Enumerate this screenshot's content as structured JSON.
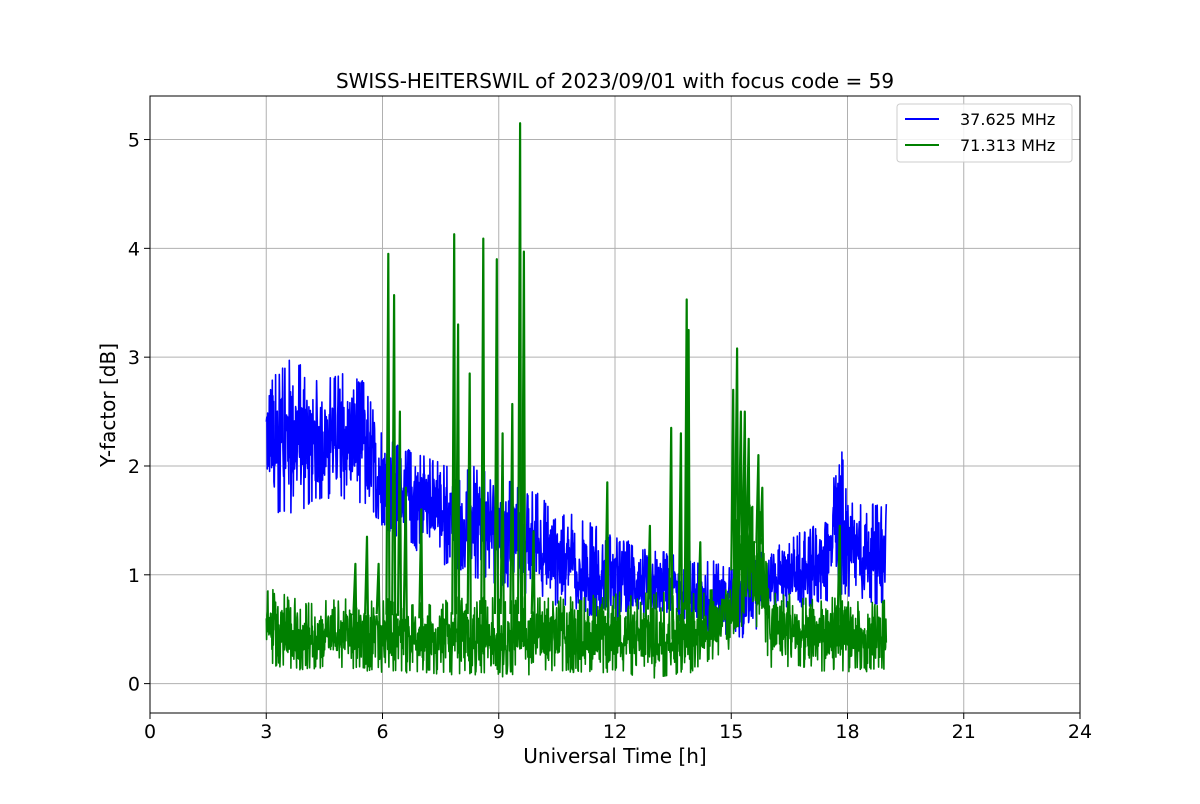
{
  "chart_data": {
    "type": "line",
    "title": "SWISS-HEITERSWIL of 2023/09/01 with focus code = 59",
    "xlabel": "Universal Time [h]",
    "ylabel": "Y-factor [dB]",
    "xlim": [
      0,
      24
    ],
    "ylim": [
      -0.27,
      5.4
    ],
    "xticks": [
      0,
      3,
      6,
      9,
      12,
      15,
      18,
      21,
      24
    ],
    "yticks": [
      0,
      1,
      2,
      3,
      4,
      5
    ],
    "grid": true,
    "legend_position": "top-right",
    "x_data_range": [
      3.0,
      19.0
    ],
    "series": [
      {
        "name": "37.625 MHz",
        "color": "#0000ff",
        "envelope": {
          "x": [
            3.0,
            3.3,
            3.7,
            4.0,
            4.5,
            5.0,
            5.5,
            6.0,
            6.5,
            7.0,
            7.5,
            8.0,
            8.5,
            9.0,
            9.5,
            10.0,
            10.5,
            11.0,
            11.5,
            12.0,
            12.5,
            13.0,
            13.5,
            14.0,
            14.5,
            15.0,
            15.5,
            16.0,
            16.5,
            17.0,
            17.5,
            17.8,
            18.0,
            18.5,
            19.0
          ],
          "min": [
            1.8,
            1.55,
            1.55,
            1.6,
            1.7,
            1.7,
            1.65,
            1.45,
            1.3,
            1.2,
            1.1,
            1.05,
            0.95,
            0.9,
            0.85,
            0.8,
            0.7,
            0.65,
            0.6,
            0.55,
            0.6,
            0.6,
            0.55,
            0.5,
            0.45,
            0.45,
            0.4,
            0.65,
            0.7,
            0.7,
            0.75,
            0.8,
            0.8,
            0.75,
            0.7
          ],
          "max": [
            2.8,
            2.85,
            3.05,
            2.85,
            2.8,
            2.85,
            2.8,
            2.3,
            2.2,
            2.1,
            2.05,
            2.0,
            2.0,
            1.95,
            1.8,
            1.75,
            1.6,
            1.55,
            1.45,
            1.35,
            1.3,
            1.25,
            1.2,
            1.15,
            1.15,
            1.1,
            1.15,
            1.25,
            1.35,
            1.45,
            1.5,
            2.35,
            1.65,
            1.7,
            1.65
          ]
        }
      },
      {
        "name": "71.313 MHz",
        "color": "#008000",
        "envelope": {
          "x": [
            3.0,
            4.0,
            5.0,
            6.0,
            7.0,
            8.0,
            9.0,
            10.0,
            11.0,
            12.0,
            13.0,
            14.0,
            15.0,
            15.1,
            15.8,
            16.0,
            17.0,
            18.0,
            19.0
          ],
          "min": [
            0.15,
            0.12,
            0.12,
            0.1,
            0.08,
            0.08,
            0.06,
            0.08,
            0.1,
            0.1,
            0.05,
            0.1,
            0.3,
            0.5,
            0.5,
            0.15,
            0.12,
            0.1,
            0.12
          ],
          "max": [
            0.9,
            0.75,
            0.78,
            0.8,
            0.75,
            0.8,
            0.8,
            0.8,
            0.8,
            0.85,
            0.85,
            0.85,
            0.9,
            1.7,
            1.6,
            0.85,
            0.8,
            0.8,
            0.8
          ]
        },
        "spikes": [
          {
            "x": 5.3,
            "y": 1.1
          },
          {
            "x": 5.6,
            "y": 1.35
          },
          {
            "x": 5.9,
            "y": 1.1
          },
          {
            "x": 6.15,
            "y": 3.95
          },
          {
            "x": 6.3,
            "y": 3.57
          },
          {
            "x": 6.45,
            "y": 2.5
          },
          {
            "x": 6.6,
            "y": 1.8
          },
          {
            "x": 7.0,
            "y": 1.6
          },
          {
            "x": 7.85,
            "y": 4.13
          },
          {
            "x": 7.95,
            "y": 3.3
          },
          {
            "x": 8.25,
            "y": 2.85
          },
          {
            "x": 8.6,
            "y": 4.09
          },
          {
            "x": 8.95,
            "y": 3.9
          },
          {
            "x": 9.1,
            "y": 2.3
          },
          {
            "x": 9.35,
            "y": 2.57
          },
          {
            "x": 9.55,
            "y": 5.15
          },
          {
            "x": 9.65,
            "y": 3.97
          },
          {
            "x": 9.9,
            "y": 1.4
          },
          {
            "x": 11.8,
            "y": 1.85
          },
          {
            "x": 12.9,
            "y": 1.45
          },
          {
            "x": 13.45,
            "y": 2.35
          },
          {
            "x": 13.7,
            "y": 2.3
          },
          {
            "x": 13.85,
            "y": 3.53
          },
          {
            "x": 13.9,
            "y": 3.25
          },
          {
            "x": 14.2,
            "y": 1.3
          },
          {
            "x": 15.05,
            "y": 2.7
          },
          {
            "x": 15.15,
            "y": 3.08
          },
          {
            "x": 15.25,
            "y": 2.5
          },
          {
            "x": 15.35,
            "y": 2.5
          },
          {
            "x": 15.45,
            "y": 2.25
          },
          {
            "x": 15.7,
            "y": 2.1
          },
          {
            "x": 15.8,
            "y": 1.8
          },
          {
            "x": 17.8,
            "y": 1.45
          }
        ]
      }
    ]
  }
}
